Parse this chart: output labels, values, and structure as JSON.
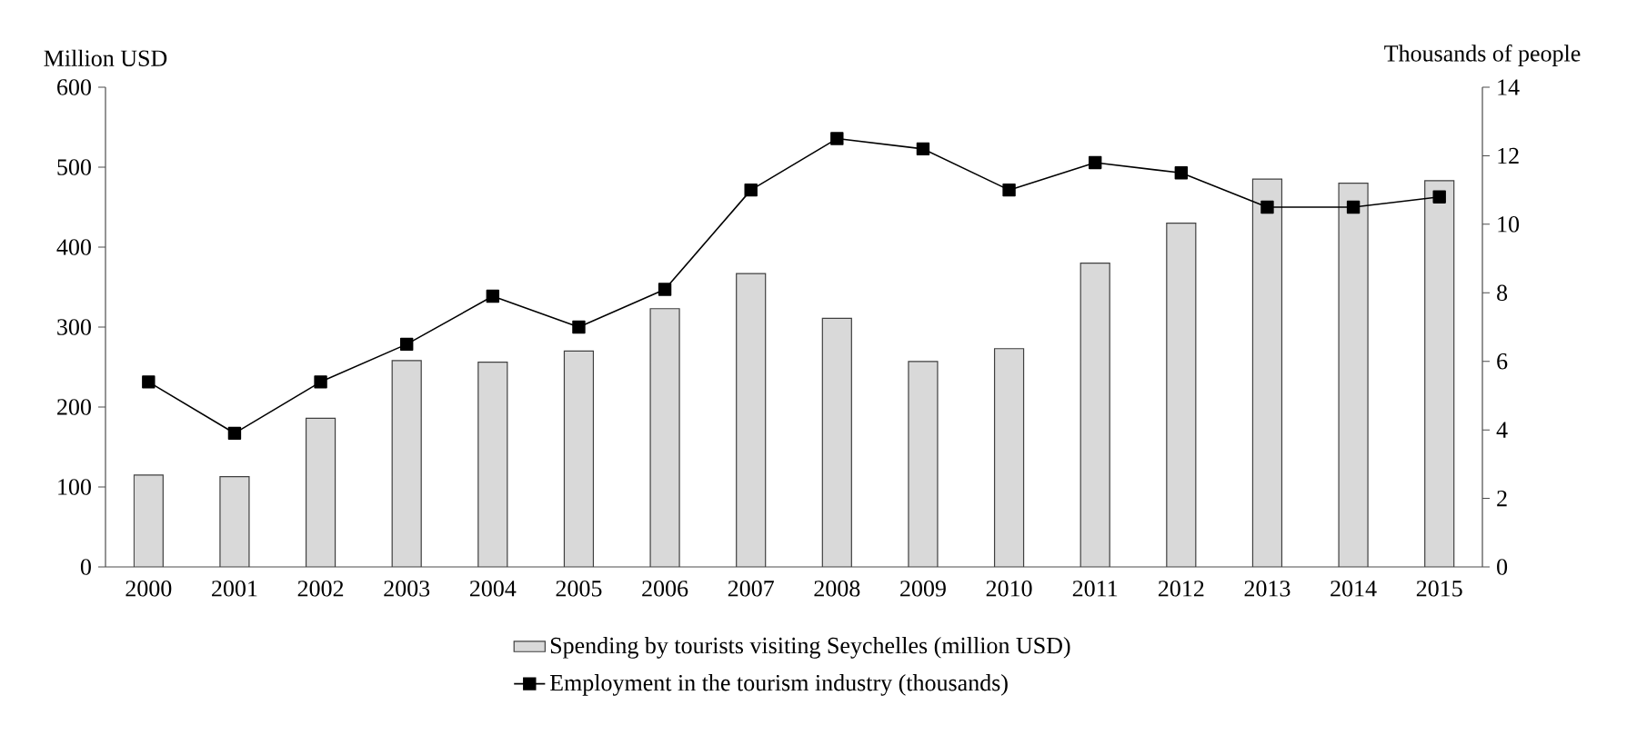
{
  "chart_data": {
    "type": "bar",
    "xlabel": null,
    "ylabel": "Million USD",
    "y2label": "Thousands of people",
    "categories": [
      "2000",
      "2001",
      "2002",
      "2003",
      "2004",
      "2005",
      "2006",
      "2007",
      "2008",
      "2009",
      "2010",
      "2011",
      "2012",
      "2013",
      "2014",
      "2015"
    ],
    "series": [
      {
        "name": "Spending by tourists visiting Seychelles (million USD)",
        "color": "#d9d9d9",
        "values": [
          115,
          113,
          186,
          258,
          256,
          270,
          323,
          367,
          311,
          257,
          273,
          380,
          430,
          485,
          480,
          483
        ]
      },
      {
        "name": "Employment in the tourism industry (thousands)",
        "type": "line",
        "axis": "y2",
        "color": "#000000",
        "marker": "square",
        "line_style": "solid",
        "values": [
          5.4,
          3.9,
          5.4,
          6.5,
          7.9,
          7.0,
          8.1,
          11.0,
          12.5,
          12.2,
          11.0,
          11.8,
          11.5,
          10.5,
          10.5,
          10.8
        ]
      }
    ],
    "ylim": [
      0,
      600
    ],
    "yticks": [
      0,
      100,
      200,
      300,
      400,
      500,
      600
    ],
    "y2lim": [
      0,
      14
    ],
    "y2ticks": [
      0,
      2,
      4,
      6,
      8,
      10,
      12,
      14
    ],
    "grid": false,
    "legend": "bottom"
  }
}
